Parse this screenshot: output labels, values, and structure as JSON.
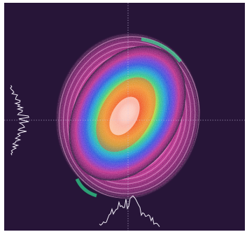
{
  "image": {
    "subject": "laser-beam-profile",
    "colors": {
      "background": "#271538",
      "crosshair": "#d4c7e8",
      "profile_trace": "#f2eef8",
      "colormap": [
        "#271538",
        "#7a1f6a",
        "#c0308f",
        "#e35ab8",
        "#6d3fd6",
        "#2b58e0",
        "#1aa6d8",
        "#2fcf8a",
        "#b6e43a",
        "#f3e23a",
        "#f7a12e",
        "#ef4324",
        "#ffffff"
      ]
    }
  }
}
